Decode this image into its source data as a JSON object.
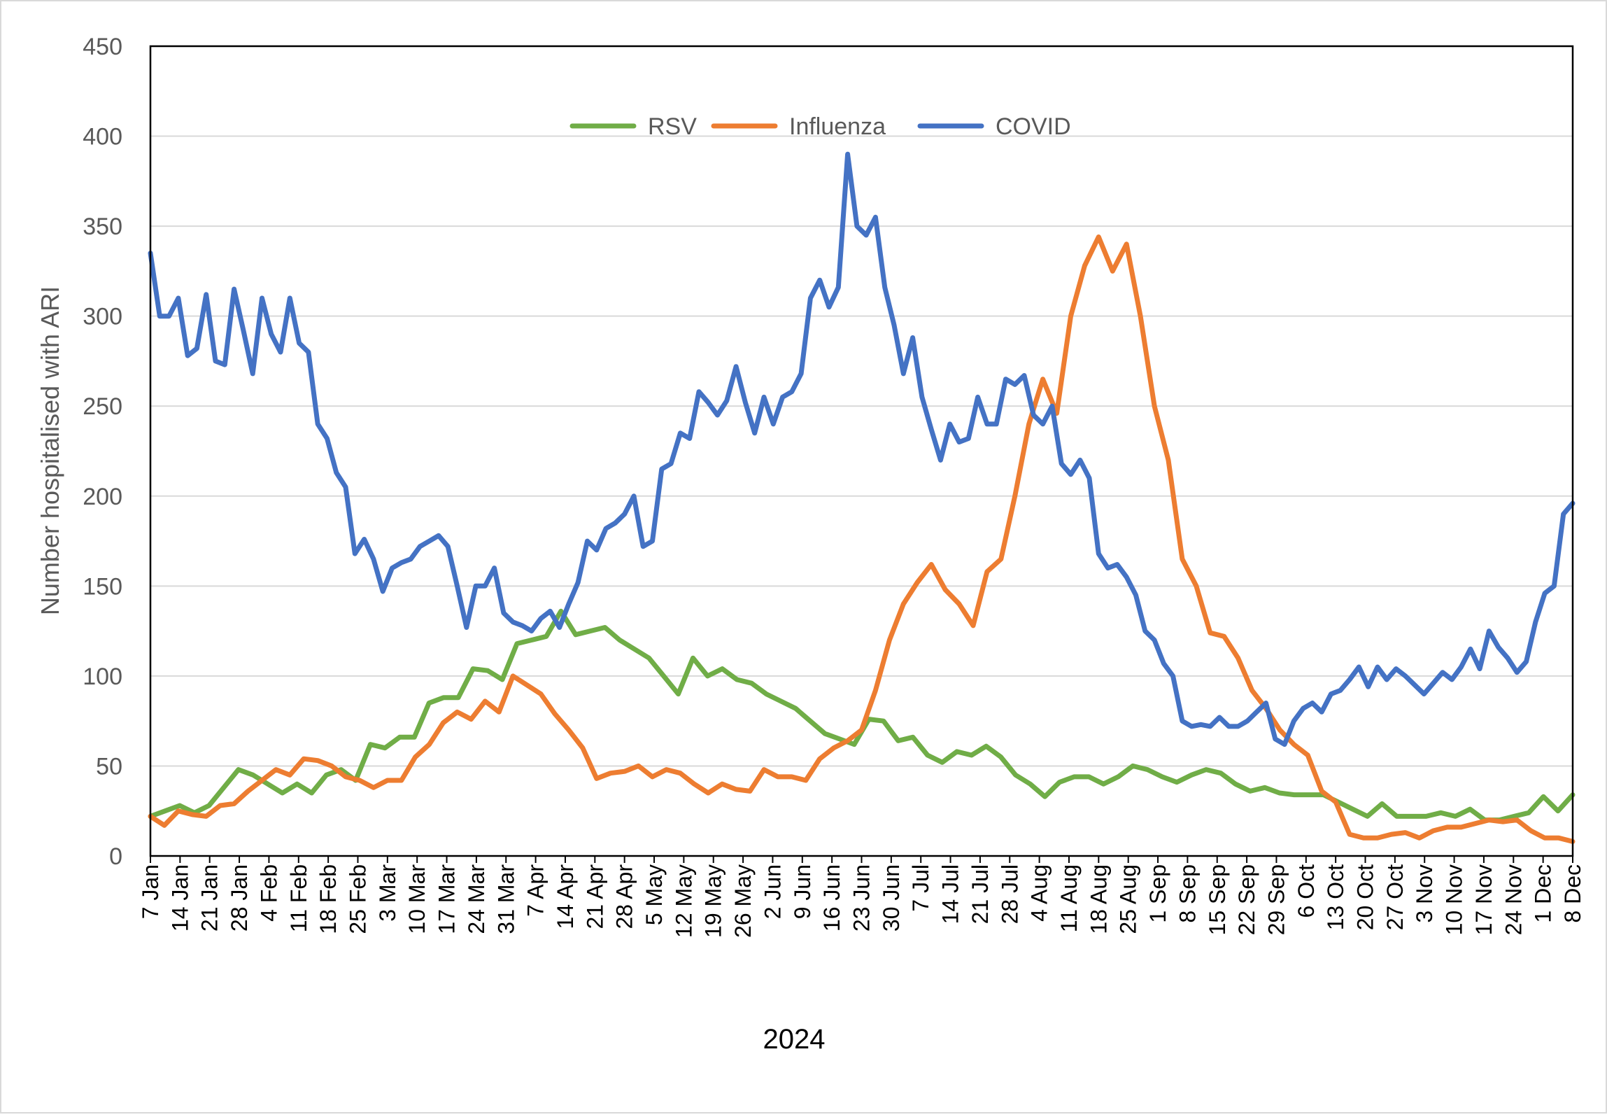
{
  "chart_data": {
    "type": "line",
    "title": "",
    "xlabel": "2024",
    "ylabel": "Number hospitalised with ARI",
    "ylim": [
      0,
      450
    ],
    "yticks": [
      0,
      50,
      100,
      150,
      200,
      250,
      300,
      350,
      400,
      450
    ],
    "grid": true,
    "legend_position": "top-center",
    "x_tick_labels": [
      "7 Jan",
      "14 Jan",
      "21 Jan",
      "28 Jan",
      "4 Feb",
      "11 Feb",
      "18 Feb",
      "25 Feb",
      "3 Mar",
      "10 Mar",
      "17 Mar",
      "24 Mar",
      "31 Mar",
      "7 Apr",
      "14 Apr",
      "21 Apr",
      "28 Apr",
      "5 May",
      "12 May",
      "19 May",
      "26 May",
      "2 Jun",
      "9 Jun",
      "16 Jun",
      "23 Jun",
      "30 Jun",
      "7 Jul",
      "14 Jul",
      "21 Jul",
      "28 Jul",
      "4 Aug",
      "11 Aug",
      "18 Aug",
      "25 Aug",
      "1 Sep",
      "8 Sep",
      "15 Sep",
      "22 Sep",
      "29 Sep",
      "6 Oct",
      "13 Oct",
      "20 Oct",
      "27 Oct",
      "3 Nov",
      "10 Nov",
      "17 Nov",
      "24 Nov",
      "1 Dec",
      "8 Dec"
    ],
    "series": [
      {
        "name": "RSV",
        "color": "#70AD47",
        "values": [
          22,
          25,
          28,
          24,
          28,
          38,
          48,
          45,
          40,
          35,
          40,
          35,
          45,
          48,
          42,
          62,
          60,
          66,
          66,
          85,
          88,
          88,
          104,
          103,
          98,
          118,
          120,
          122,
          136,
          123,
          125,
          127,
          120,
          115,
          110,
          100,
          90,
          110,
          100,
          104,
          98,
          96,
          90,
          86,
          82,
          75,
          68,
          65,
          62,
          76,
          75,
          64,
          66,
          56,
          52,
          58,
          56,
          61,
          55,
          45,
          40,
          33,
          41,
          44,
          44,
          40,
          44,
          50,
          48,
          44,
          41,
          45,
          48,
          46,
          40,
          36,
          38,
          35,
          34,
          34,
          34,
          30,
          26,
          22,
          29,
          22,
          22,
          22,
          24,
          22,
          26,
          20,
          20,
          22,
          24,
          33,
          25,
          34
        ]
      },
      {
        "name": "Influenza",
        "color": "#ED7D31",
        "values": [
          22,
          17,
          25,
          23,
          22,
          28,
          29,
          36,
          42,
          48,
          45,
          54,
          53,
          50,
          44,
          42,
          38,
          42,
          42,
          55,
          62,
          74,
          80,
          76,
          86,
          80,
          100,
          95,
          90,
          79,
          70,
          60,
          43,
          46,
          47,
          50,
          44,
          48,
          46,
          40,
          35,
          40,
          37,
          36,
          48,
          44,
          44,
          42,
          54,
          60,
          64,
          70,
          92,
          120,
          140,
          152,
          162,
          148,
          140,
          128,
          158,
          165,
          200,
          240,
          265,
          246,
          300,
          328,
          344,
          325,
          340,
          300,
          250,
          220,
          165,
          150,
          124,
          122,
          110,
          92,
          82,
          70,
          62,
          56,
          36,
          30,
          12,
          10,
          10,
          12,
          13,
          10,
          14,
          16,
          16,
          18,
          20,
          19,
          20,
          14,
          10,
          10,
          8
        ]
      },
      {
        "name": "COVID",
        "color": "#4472C4",
        "values": [
          335,
          300,
          300,
          310,
          278,
          282,
          312,
          275,
          273,
          315,
          292,
          268,
          310,
          290,
          280,
          310,
          285,
          280,
          240,
          232,
          213,
          205,
          168,
          176,
          165,
          147,
          160,
          163,
          165,
          172,
          175,
          178,
          172,
          150,
          127,
          150,
          150,
          160,
          135,
          130,
          128,
          125,
          132,
          136,
          127,
          140,
          152,
          175,
          170,
          182,
          185,
          190,
          200,
          172,
          175,
          215,
          218,
          235,
          232,
          258,
          252,
          245,
          253,
          272,
          252,
          235,
          255,
          240,
          255,
          258,
          268,
          310,
          320,
          305,
          316,
          390,
          350,
          345,
          355,
          316,
          295,
          268,
          288,
          255,
          237,
          220,
          240,
          230,
          232,
          255,
          240,
          240,
          265,
          262,
          267,
          245,
          240,
          250,
          218,
          212,
          220,
          210,
          168,
          160,
          162,
          155,
          145,
          125,
          120,
          107,
          100,
          75,
          72,
          73,
          72,
          77,
          72,
          72,
          75,
          80,
          85,
          65,
          62,
          75,
          82,
          85,
          80,
          90,
          92,
          98,
          105,
          94,
          105,
          98,
          104,
          100,
          95,
          90,
          96,
          102,
          98,
          105,
          115,
          104,
          125,
          116,
          110,
          102,
          108,
          130,
          146,
          150,
          190,
          196
        ]
      }
    ]
  }
}
